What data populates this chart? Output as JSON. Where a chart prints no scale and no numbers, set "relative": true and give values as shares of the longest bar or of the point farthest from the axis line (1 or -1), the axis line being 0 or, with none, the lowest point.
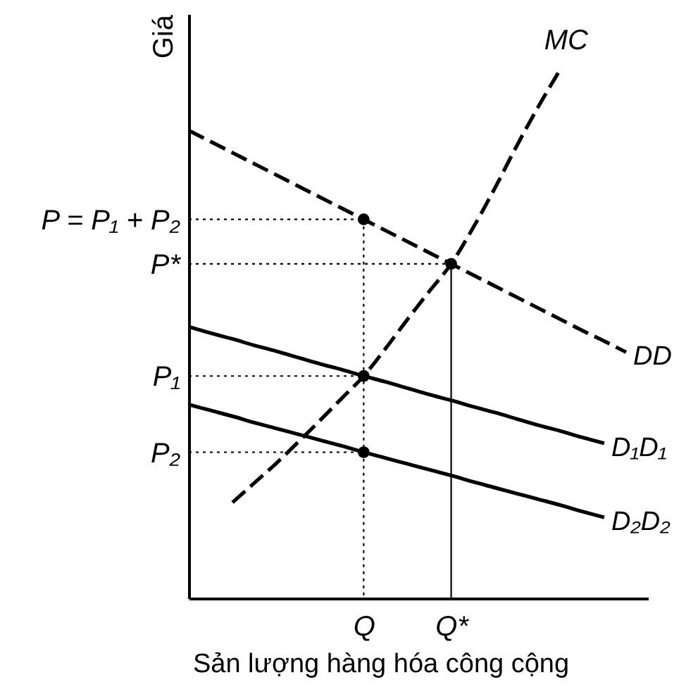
{
  "chart_data": {
    "type": "line",
    "relative": true,
    "grid": false,
    "xlabel": "Sản lượng hàng hóa công cộng",
    "ylabel": "Giá",
    "categories": [
      null,
      null,
      null,
      null,
      null,
      null,
      null,
      null,
      "Q",
      null,
      null,
      null,
      "Q*",
      null,
      null,
      null,
      null,
      null,
      null,
      null,
      null,
      null
    ],
    "series": [
      {
        "name": "DD",
        "line_style": "dashed",
        "color": "#000000",
        "values": [
          0.884,
          0.863,
          0.842,
          0.821,
          0.8,
          0.779,
          0.758,
          0.737,
          0.716,
          0.695,
          0.674,
          0.653,
          0.632,
          0.611,
          0.59,
          0.569,
          0.548,
          0.527,
          0.506,
          0.486,
          0.465,
          null
        ]
      },
      {
        "name": "D₁D₁",
        "line_style": "solid",
        "color": "#000000",
        "values": [
          0.513,
          0.501,
          0.49,
          0.478,
          0.467,
          0.455,
          0.443,
          0.432,
          0.42,
          0.409,
          0.397,
          0.385,
          0.374,
          0.362,
          0.351,
          0.339,
          0.327,
          0.316,
          0.304,
          0.293,
          null,
          null
        ]
      },
      {
        "name": "D₂D₂",
        "line_style": "solid",
        "color": "#000000",
        "values": [
          0.366,
          0.355,
          0.344,
          0.332,
          0.321,
          0.31,
          0.299,
          0.288,
          0.276,
          0.265,
          0.254,
          0.243,
          0.232,
          0.22,
          0.209,
          0.198,
          0.187,
          0.176,
          0.164,
          0.153,
          null,
          null
        ]
      },
      {
        "name": "MC",
        "line_style": "dashed",
        "color": "#000000",
        "values": [
          null,
          null,
          0.181,
          0.218,
          0.255,
          0.295,
          0.336,
          0.378,
          0.42,
          0.472,
          0.527,
          0.58,
          0.632,
          0.7,
          0.775,
          0.855,
          0.93,
          1.0,
          null,
          null,
          null,
          null
        ]
      },
      {
        "name": "P = P₁ + P₂",
        "line_style": "dotted",
        "color": "#000000",
        "values": [
          0.716,
          0.716,
          0.716,
          0.716,
          0.716,
          0.716,
          0.716,
          0.716,
          0.716,
          null,
          null,
          null,
          null,
          null,
          null,
          null,
          null,
          null,
          null,
          null,
          null,
          null
        ]
      },
      {
        "name": "P*",
        "line_style": "dotted",
        "color": "#000000",
        "values": [
          0.632,
          0.632,
          0.632,
          0.632,
          0.632,
          0.632,
          0.632,
          0.632,
          0.632,
          0.632,
          0.632,
          0.632,
          0.632,
          null,
          null,
          null,
          null,
          null,
          null,
          null,
          null,
          null
        ]
      },
      {
        "name": "P₁",
        "line_style": "dotted",
        "color": "#000000",
        "values": [
          0.42,
          0.42,
          0.42,
          0.42,
          0.42,
          0.42,
          0.42,
          0.42,
          0.42,
          null,
          null,
          null,
          null,
          null,
          null,
          null,
          null,
          null,
          null,
          null,
          null,
          null
        ]
      },
      {
        "name": "P₂",
        "line_style": "dotted",
        "color": "#000000",
        "values": [
          0.276,
          0.276,
          0.276,
          0.276,
          0.276,
          0.276,
          0.276,
          0.276,
          0.276,
          null,
          null,
          null,
          null,
          null,
          null,
          null,
          null,
          null,
          null,
          null,
          null,
          null
        ]
      },
      {
        "type": "lollipop",
        "line_style": "dotted",
        "marker": "circle",
        "color": "#000000",
        "values": [
          null,
          null,
          null,
          null,
          null,
          null,
          null,
          null,
          0.716,
          null,
          null,
          null,
          null,
          null,
          null,
          null,
          null,
          null,
          null,
          null,
          null,
          null
        ]
      },
      {
        "type": "lollipop",
        "line_style": "solid",
        "marker": "circle",
        "color": "#000000",
        "values": [
          null,
          null,
          null,
          null,
          null,
          null,
          null,
          null,
          null,
          null,
          null,
          null,
          0.632,
          null,
          null,
          null,
          null,
          null,
          null,
          null,
          null,
          null
        ]
      },
      {
        "type": "scatter",
        "marker": "circle",
        "color": "#000000",
        "values": [
          null,
          null,
          null,
          null,
          null,
          null,
          null,
          null,
          0.42,
          null,
          null,
          null,
          null,
          null,
          null,
          null,
          null,
          null,
          null,
          null,
          null,
          null
        ]
      },
      {
        "type": "scatter",
        "marker": "circle",
        "color": "#000000",
        "values": [
          null,
          null,
          null,
          null,
          null,
          null,
          null,
          null,
          0.276,
          null,
          null,
          null,
          null,
          null,
          null,
          null,
          null,
          null,
          null,
          null,
          null,
          null
        ]
      }
    ]
  }
}
